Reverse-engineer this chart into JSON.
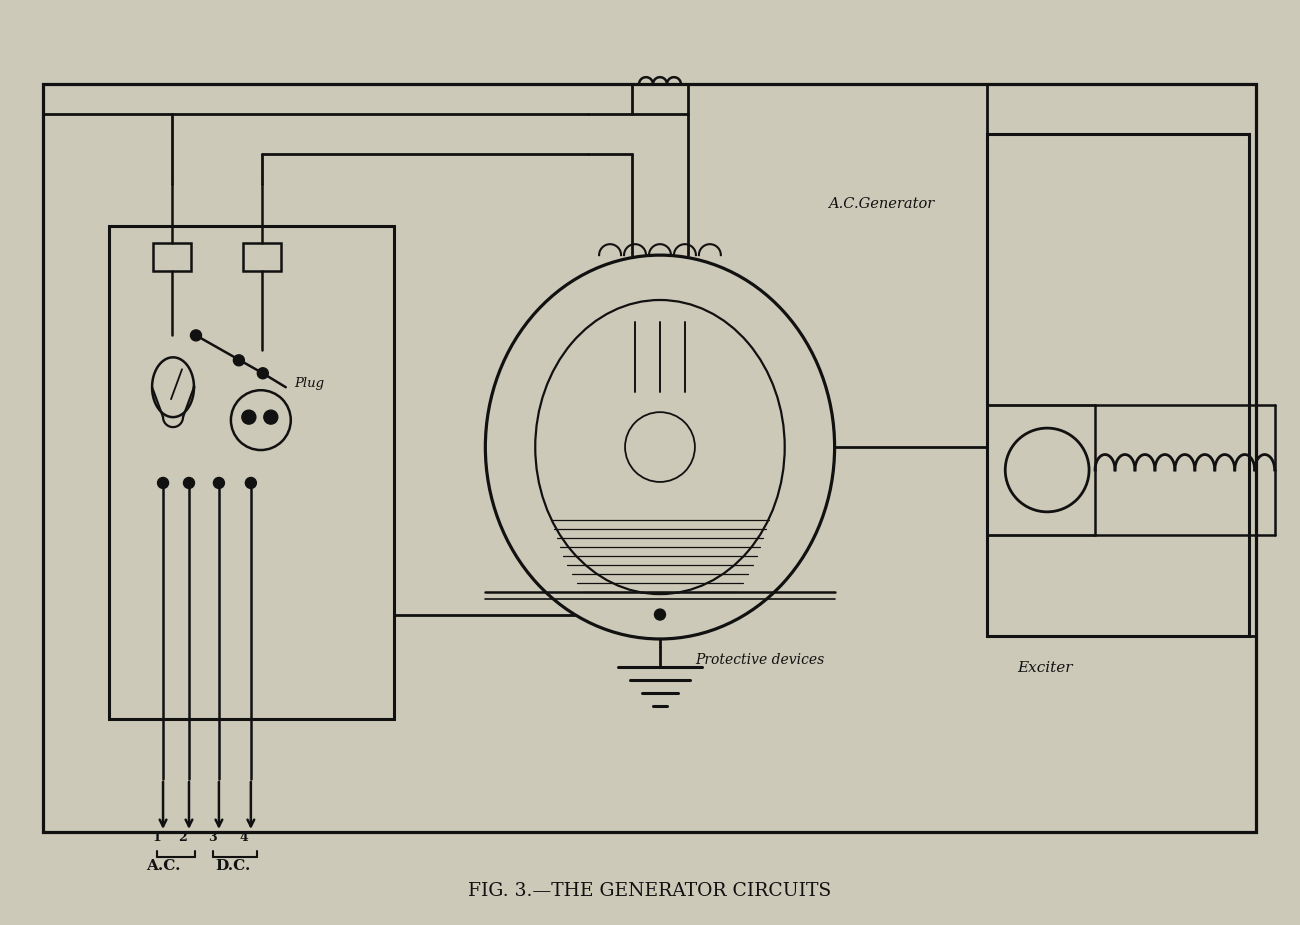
{
  "background_color": "#cdc9b8",
  "line_color": "#111111",
  "title": "FIG. 3.—THE GENERATOR CIRCUITS",
  "title_fontsize": 13.5,
  "label_ac_generator": "A.C.Generator",
  "label_exciter": "Exciter",
  "label_plug": "Plug",
  "label_protective": "Protective devices",
  "label_ac": "A.C.",
  "label_dc": "D.C.",
  "figsize": [
    13.0,
    9.25
  ],
  "dpi": 100
}
